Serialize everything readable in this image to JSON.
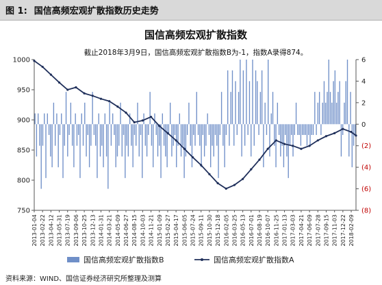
{
  "header": {
    "figure_number": "图 1:",
    "figure_title": "国信高频宏观扩散指数历史走势"
  },
  "source_note": "资料来源：WIND、国信证券经济研究所整理及测算",
  "colors": {
    "bar": "#6f8fc8",
    "line": "#1f2f5a",
    "negative_tick": "#c00000",
    "header_bg": "#d9d9d9"
  },
  "chart_data": {
    "type": "bar+line",
    "title": "国信高频宏观扩散指数",
    "annotation": "截止2018年3月9日，国信高频宏观扩散指数B为-1，指数A录得874。",
    "left_axis": {
      "ylim": [
        750,
        1000
      ],
      "ticks": [
        750,
        800,
        850,
        900,
        950,
        1000
      ]
    },
    "right_axis": {
      "ylim": [
        -8,
        6
      ],
      "ticks": [
        "(8)",
        "(6)",
        "(4)",
        "(2)",
        "0",
        "2",
        "4",
        "6"
      ]
    },
    "x_tick_labels": [
      "2013-01-04",
      "2013-02-22",
      "2013-04-12",
      "2013-05-31",
      "2013-07-19",
      "2013-09-06",
      "2013-10-25",
      "2013-12-13",
      "2014-01-31",
      "2014-03-21",
      "2014-05-09",
      "2014-06-27",
      "2014-08-15",
      "2014-10-03",
      "2014-11-21",
      "2015-01-09",
      "2015-02-27",
      "2015-04-17",
      "2015-06-05",
      "2015-07-24",
      "2015-09-11",
      "2015-10-30",
      "2015-12-18",
      "2016-02-05",
      "2016-03-25",
      "2016-05-13",
      "2016-07-01",
      "2016-08-19",
      "2016-10-07",
      "2016-11-25",
      "2017-01-13",
      "2017-03-03",
      "2017-04-21",
      "2017-06-09",
      "2017-07-28",
      "2017-09-15",
      "2017-11-03",
      "2017-12-22",
      "2018-02-09"
    ],
    "series_a": {
      "name": "国信高频宏观扩散指数A",
      "axis": "left",
      "x": [
        "2013-01-04",
        "2013-02-22",
        "2013-04-12",
        "2013-05-31",
        "2013-07-19",
        "2013-09-06",
        "2013-10-25",
        "2013-12-13",
        "2014-01-31",
        "2014-03-21",
        "2014-05-09",
        "2014-06-27",
        "2014-08-15",
        "2014-10-03",
        "2014-11-21",
        "2015-01-09",
        "2015-02-27",
        "2015-04-17",
        "2015-06-05",
        "2015-07-24",
        "2015-09-11",
        "2015-10-30",
        "2015-12-18",
        "2016-02-05",
        "2016-03-25",
        "2016-05-13",
        "2016-07-01",
        "2016-08-19",
        "2016-10-07",
        "2016-11-25",
        "2017-01-13",
        "2017-03-03",
        "2017-04-21",
        "2017-06-09",
        "2017-07-28",
        "2017-09-15",
        "2017-11-03",
        "2017-12-22",
        "2018-02-09",
        "2018-03-09"
      ],
      "values": [
        998,
        988,
        975,
        962,
        950,
        954,
        944,
        940,
        935,
        931,
        922,
        912,
        896,
        899,
        905,
        890,
        878,
        866,
        852,
        838,
        825,
        810,
        795,
        786,
        792,
        802,
        818,
        834,
        852,
        866,
        860,
        857,
        852,
        857,
        866,
        873,
        878,
        885,
        880,
        874
      ]
    },
    "series_b": {
      "name": "国信高频宏观扩散指数B",
      "axis": "right",
      "values": [
        1,
        -3,
        1,
        -2,
        -6,
        -2,
        1,
        -5,
        1,
        -1,
        -3,
        -4,
        2,
        -2,
        1,
        -4,
        -1,
        1,
        -5,
        -2,
        3,
        -3,
        -1,
        2,
        -2,
        -4,
        1,
        -2,
        -1,
        -5,
        1,
        -2,
        2,
        -3,
        -1,
        -4,
        -2,
        3,
        -1,
        -2,
        -5,
        1,
        -3,
        -2,
        -4,
        1,
        -3,
        -6,
        2,
        -2,
        1,
        -1,
        -4,
        -3,
        -2,
        2,
        -3,
        -1,
        -5,
        -2,
        -3,
        1,
        -2,
        -4,
        -1,
        -2,
        2,
        -3,
        -1,
        -5,
        1,
        -2,
        -3,
        -1,
        3,
        -2,
        -4,
        1,
        -1,
        -3,
        -2,
        -5,
        1,
        -2,
        -3,
        -4,
        -1,
        2,
        -3,
        -2,
        -1,
        -4,
        -2,
        1,
        -3,
        -2,
        -5,
        -3,
        -1,
        2,
        -2,
        -4,
        -1,
        -2,
        3,
        -1,
        -2,
        -4,
        -1,
        -3,
        -2,
        1,
        -1,
        -4,
        -2,
        -3,
        -1,
        -2,
        -5,
        -1,
        3,
        -2,
        -4,
        -1,
        5,
        -2,
        3,
        5,
        -2,
        4,
        -1,
        3,
        6,
        -3,
        5,
        -2,
        6,
        -1,
        4,
        -3,
        6,
        -2,
        5,
        4,
        -1,
        3,
        5,
        -4,
        2,
        -1,
        6,
        -3,
        1,
        3,
        -2,
        -4,
        2,
        -1,
        -3,
        -2,
        -4,
        -1,
        -3,
        -5,
        -2,
        -1,
        -3,
        -1,
        2,
        -1,
        -1,
        -2,
        -1,
        -1,
        -1,
        -2,
        -1,
        -2,
        -1,
        -1,
        3,
        -1,
        2,
        3,
        -1,
        2,
        4,
        2,
        3,
        6,
        3,
        2,
        4,
        5,
        2,
        3,
        4,
        -3,
        -1,
        2,
        4,
        6,
        -3,
        3,
        -4,
        -2,
        -1
      ]
    },
    "legend": [
      "国信高频宏观扩散指数B",
      "国信高频宏观扩散指数A"
    ],
    "legend_position": "bottom",
    "grid": false
  }
}
